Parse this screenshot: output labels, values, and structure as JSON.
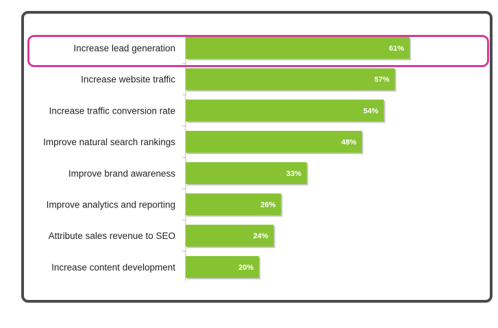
{
  "chart_data": {
    "type": "bar",
    "orientation": "horizontal",
    "categories": [
      "Increase lead generation",
      "Increase website traffic",
      "Increase traffic conversion rate",
      "Improve natural search rankings",
      "Improve brand awareness",
      "Improve analytics and reporting",
      "Attribute sales revenue to SEO",
      "Increase content development"
    ],
    "values": [
      61,
      57,
      54,
      48,
      33,
      26,
      24,
      20
    ],
    "value_labels": [
      "61%",
      "57%",
      "54%",
      "48%",
      "33%",
      "26%",
      "24%",
      "20%"
    ],
    "xlim": [
      0,
      100
    ],
    "grid": false,
    "highlighted_category": "Increase lead generation",
    "colors": {
      "bar": "#86c232",
      "highlight": "#d6399a",
      "frame": "#4a4a4a"
    }
  }
}
